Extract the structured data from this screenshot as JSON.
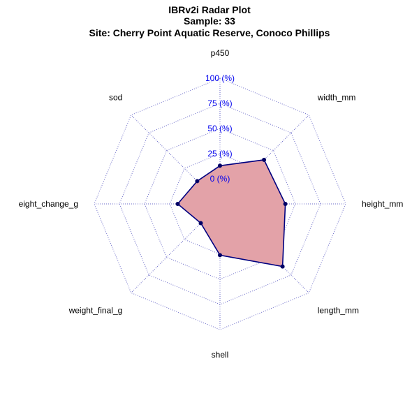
{
  "chart_data": {
    "type": "radar",
    "title_lines": [
      "IBRv2i Radar Plot",
      "Sample: 33",
      "Site: Cherry Point Aquatic Reserve, Conoco Phillips"
    ],
    "axes": [
      "p450",
      "width_mm",
      "height_mm",
      "length_mm",
      "shell",
      "weight_final_g",
      "eight_change_g",
      "sod"
    ],
    "tick_labels": [
      "0 (%)",
      "25 (%)",
      "50 (%)",
      "75 (%)",
      "100 (%)"
    ],
    "range": [
      0,
      100
    ],
    "grid": true,
    "series": [
      {
        "values": [
          13,
          37,
          40,
          63,
          26,
          2,
          17,
          7
        ]
      }
    ],
    "colors": {
      "fill": "#e3a2a8",
      "line": "#000080",
      "point": "#000066",
      "grid": "#6a6ac8",
      "tick_text": "#0000ee"
    }
  }
}
